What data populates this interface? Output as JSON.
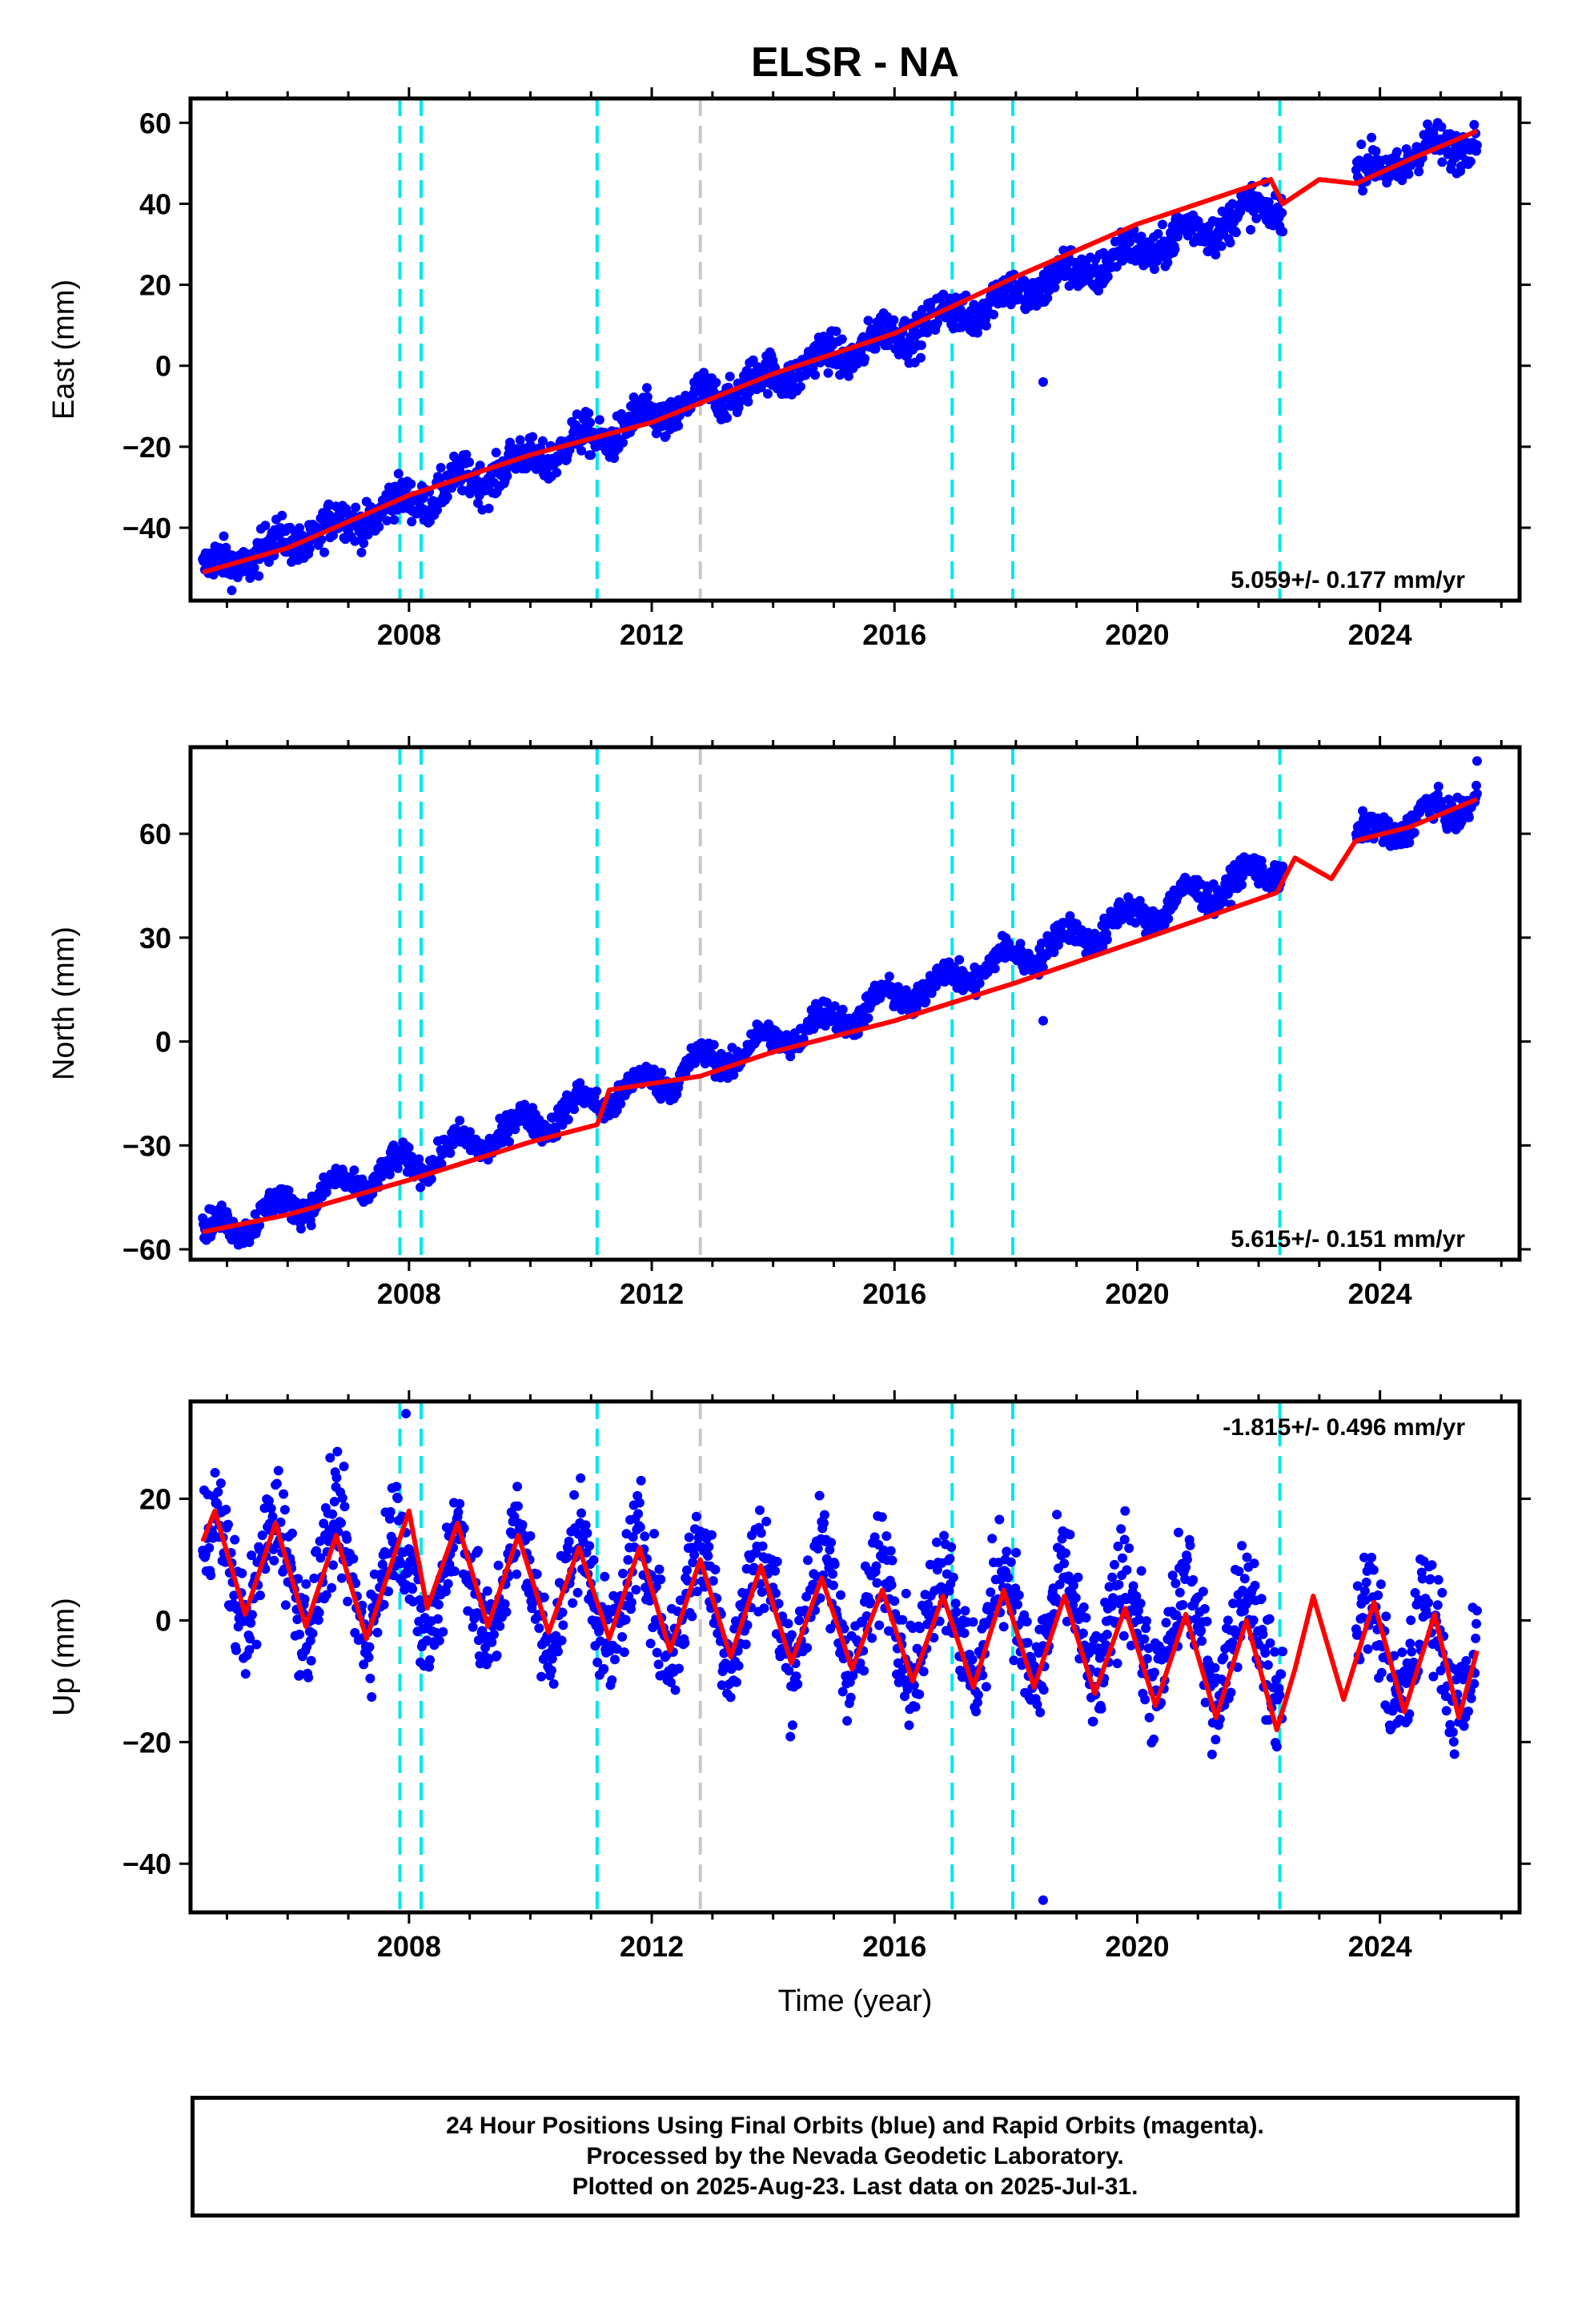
{
  "title": "ELSR - NA",
  "colors": {
    "points": "#0000ff",
    "model": "#ff0000",
    "event_cyan": "#00e5ee",
    "event_gray": "#c8c8c8"
  },
  "footer": {
    "line1": "24 Hour Positions Using Final Orbits (blue) and Rapid Orbits (magenta).",
    "line2": "Processed by the Nevada Geodetic Laboratory.",
    "line3": "Plotted on 2025-Aug-23. Last data on 2025-Jul-31."
  },
  "chart_data": [
    {
      "type": "scatter",
      "component": "East",
      "ylabel": "East (mm)",
      "xlabel": "",
      "xlim": [
        2004.4,
        2026.3
      ],
      "ylim": [
        -58,
        66
      ],
      "x_ticks": [
        2008,
        2012,
        2016,
        2020,
        2024
      ],
      "y_ticks": [
        -40,
        -20,
        0,
        20,
        40,
        60
      ],
      "rate_label": "5.059+/- 0.177 mm/yr",
      "rate_position": "bottom-right",
      "series": [
        {
          "role": "daily positions",
          "color": "#0000ff",
          "data_gap": [
            2022.4,
            2023.6
          ],
          "approx_trend": {
            "x": [
              2004.6,
              2025.6
            ],
            "y": [
              -51,
              57
            ]
          },
          "approx_annual_amplitude": 2.5,
          "approx_scatter": 2.5,
          "outliers": [
            [
              2018.45,
              -4
            ]
          ]
        },
        {
          "role": "model fit",
          "color": "#ff0000",
          "points": [
            [
              2004.6,
              -51
            ],
            [
              2006.0,
              -45
            ],
            [
              2008.0,
              -32
            ],
            [
              2010.0,
              -22
            ],
            [
              2012.0,
              -14
            ],
            [
              2014.0,
              -2
            ],
            [
              2016.0,
              8
            ],
            [
              2018.0,
              22
            ],
            [
              2020.0,
              35
            ],
            [
              2022.2,
              46
            ],
            [
              2022.4,
              40
            ],
            [
              2023.0,
              46
            ],
            [
              2023.6,
              45
            ],
            [
              2024.5,
              51
            ],
            [
              2025.6,
              58
            ]
          ]
        }
      ],
      "event_lines": [
        {
          "x": 2007.85,
          "color": "cyan"
        },
        {
          "x": 2008.2,
          "color": "cyan"
        },
        {
          "x": 2011.1,
          "color": "cyan"
        },
        {
          "x": 2012.8,
          "color": "gray"
        },
        {
          "x": 2016.95,
          "color": "cyan"
        },
        {
          "x": 2017.95,
          "color": "cyan"
        },
        {
          "x": 2022.35,
          "color": "cyan"
        }
      ]
    },
    {
      "type": "scatter",
      "component": "North",
      "ylabel": "North (mm)",
      "xlabel": "",
      "xlim": [
        2004.4,
        2026.3
      ],
      "ylim": [
        -63,
        85
      ],
      "x_ticks": [
        2008,
        2012,
        2016,
        2020,
        2024
      ],
      "y_ticks": [
        -60,
        -30,
        0,
        30,
        60
      ],
      "rate_label": "5.615+/- 0.151 mm/yr",
      "rate_position": "bottom-right",
      "series": [
        {
          "role": "daily positions",
          "color": "#0000ff",
          "data_gap": [
            2022.4,
            2023.6
          ],
          "approx_trend": {
            "x": [
              2004.6,
              2025.6
            ],
            "y": [
              -56,
              70
            ]
          },
          "approx_annual_amplitude": 3.5,
          "approx_scatter": 2.0,
          "outliers": [
            [
              2018.45,
              6
            ],
            [
              2025.6,
              81
            ]
          ]
        },
        {
          "role": "model fit",
          "color": "#ff0000",
          "points": [
            [
              2004.6,
              -55
            ],
            [
              2006.0,
              -50
            ],
            [
              2008.0,
              -40
            ],
            [
              2010.0,
              -29
            ],
            [
              2011.1,
              -24
            ],
            [
              2011.3,
              -14
            ],
            [
              2012.8,
              -10
            ],
            [
              2014.0,
              -3
            ],
            [
              2016.0,
              6
            ],
            [
              2018.0,
              17
            ],
            [
              2020.0,
              29
            ],
            [
              2022.3,
              43
            ],
            [
              2022.6,
              53
            ],
            [
              2023.2,
              47
            ],
            [
              2023.6,
              58
            ],
            [
              2024.5,
              62
            ],
            [
              2025.6,
              70
            ]
          ]
        }
      ],
      "event_lines": [
        {
          "x": 2007.85,
          "color": "cyan"
        },
        {
          "x": 2008.2,
          "color": "cyan"
        },
        {
          "x": 2011.1,
          "color": "cyan"
        },
        {
          "x": 2012.8,
          "color": "gray"
        },
        {
          "x": 2016.95,
          "color": "cyan"
        },
        {
          "x": 2017.95,
          "color": "cyan"
        },
        {
          "x": 2022.35,
          "color": "cyan"
        }
      ]
    },
    {
      "type": "scatter",
      "component": "Up",
      "ylabel": "Up (mm)",
      "xlabel": "Time (year)",
      "xlim": [
        2004.4,
        2026.3
      ],
      "ylim": [
        -48,
        36
      ],
      "x_ticks": [
        2008,
        2012,
        2016,
        2020,
        2024
      ],
      "y_ticks": [
        -40,
        -20,
        0,
        20
      ],
      "rate_label": "-1.815+/- 0.496 mm/yr",
      "rate_position": "top-right",
      "series": [
        {
          "role": "daily positions",
          "color": "#0000ff",
          "data_gap": [
            2022.4,
            2023.6
          ],
          "approx_trend": {
            "x": [
              2004.6,
              2025.6
            ],
            "y": [
              9,
              -6
            ]
          },
          "approx_annual_amplitude": 9,
          "approx_scatter": 4.5,
          "outliers": [
            [
              2007.95,
              34
            ],
            [
              2018.45,
              -46
            ],
            [
              2019.8,
              18
            ]
          ]
        },
        {
          "role": "model fit",
          "color": "#ff0000",
          "points": [
            [
              2004.6,
              13
            ],
            [
              2004.8,
              18
            ],
            [
              2005.3,
              1
            ],
            [
              2005.8,
              16
            ],
            [
              2006.3,
              -1
            ],
            [
              2006.8,
              14
            ],
            [
              2007.3,
              -3
            ],
            [
              2007.8,
              12
            ],
            [
              2008.0,
              18
            ],
            [
              2008.3,
              2
            ],
            [
              2008.8,
              16
            ],
            [
              2009.3,
              -1
            ],
            [
              2009.8,
              14
            ],
            [
              2010.3,
              -2
            ],
            [
              2010.8,
              12
            ],
            [
              2011.3,
              -3
            ],
            [
              2011.8,
              12
            ],
            [
              2012.3,
              -5
            ],
            [
              2012.8,
              10
            ],
            [
              2013.3,
              -6
            ],
            [
              2013.8,
              9
            ],
            [
              2014.3,
              -7
            ],
            [
              2014.8,
              7
            ],
            [
              2015.3,
              -8
            ],
            [
              2015.8,
              5
            ],
            [
              2016.3,
              -10
            ],
            [
              2016.8,
              4
            ],
            [
              2017.3,
              -11
            ],
            [
              2017.8,
              5
            ],
            [
              2018.3,
              -11
            ],
            [
              2018.8,
              4
            ],
            [
              2019.3,
              -12
            ],
            [
              2019.8,
              2
            ],
            [
              2020.3,
              -14
            ],
            [
              2020.8,
              1
            ],
            [
              2021.3,
              -16
            ],
            [
              2021.8,
              0
            ],
            [
              2022.3,
              -18
            ],
            [
              2022.6,
              -8
            ],
            [
              2022.9,
              4
            ],
            [
              2023.4,
              -13
            ],
            [
              2023.9,
              3
            ],
            [
              2024.4,
              -15
            ],
            [
              2024.9,
              1
            ],
            [
              2025.3,
              -16
            ],
            [
              2025.6,
              -5
            ]
          ]
        }
      ],
      "event_lines": [
        {
          "x": 2007.85,
          "color": "cyan"
        },
        {
          "x": 2008.2,
          "color": "cyan"
        },
        {
          "x": 2011.1,
          "color": "cyan"
        },
        {
          "x": 2012.8,
          "color": "gray"
        },
        {
          "x": 2016.95,
          "color": "cyan"
        },
        {
          "x": 2017.95,
          "color": "cyan"
        },
        {
          "x": 2022.35,
          "color": "cyan"
        }
      ]
    }
  ]
}
